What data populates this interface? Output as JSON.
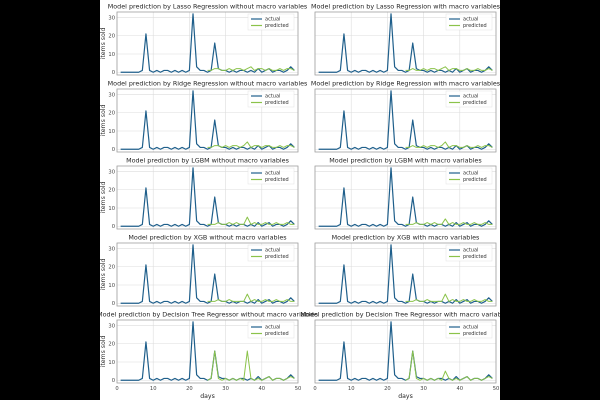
{
  "chart_data": {
    "type": "line",
    "layout": {
      "rows": 5,
      "cols": 2
    },
    "xlabel": "days",
    "ylabel": "items sold",
    "xlim": [
      0,
      50
    ],
    "ylim": [
      -1.5,
      33
    ],
    "xticks": [
      0,
      10,
      20,
      30,
      40,
      50
    ],
    "yticks": [
      0,
      10,
      20,
      30
    ],
    "grid": true,
    "legend_position": "top-right",
    "legend": [
      "actual",
      "predicted"
    ],
    "colors": {
      "actual": "#1f5f8b",
      "predicted": "#8bc34a"
    },
    "x": [
      1,
      2,
      3,
      4,
      5,
      6,
      7,
      8,
      9,
      10,
      11,
      12,
      13,
      14,
      15,
      16,
      17,
      18,
      19,
      20,
      21,
      22,
      23,
      24,
      25,
      26,
      27,
      28,
      29,
      30,
      31,
      32,
      33,
      34,
      35,
      36,
      37,
      38,
      39,
      40,
      41,
      42,
      43,
      44,
      45,
      46,
      47,
      48,
      49
    ],
    "actual": [
      0,
      0,
      0,
      0,
      0,
      0,
      1,
      21,
      1,
      0,
      1,
      0,
      1,
      1,
      0,
      1,
      0,
      1,
      0,
      1,
      32,
      3,
      1,
      1,
      0,
      1,
      16,
      2,
      1,
      1,
      0,
      1,
      0,
      1,
      1,
      0,
      1,
      0,
      2,
      0,
      1,
      2,
      0,
      1,
      1,
      0,
      1,
      3,
      1
    ],
    "charts": [
      {
        "title": "Model prediction by Lasso Regression without macro variables",
        "predicted": {
          "start": 25,
          "values": [
            1,
            1,
            2,
            2,
            1,
            1,
            2,
            1,
            2,
            2,
            1,
            2,
            3,
            1,
            2,
            2,
            1,
            2,
            1,
            1,
            2,
            1,
            2,
            2,
            1
          ]
        }
      },
      {
        "title": "Model prediction by Lasso Regression with macro variables",
        "predicted": {
          "start": 25,
          "values": [
            1,
            1,
            2,
            1,
            1,
            2,
            1,
            2,
            2,
            1,
            2,
            3,
            1,
            2,
            2,
            1,
            1,
            2,
            1,
            1,
            2,
            1,
            1,
            2,
            1
          ]
        }
      },
      {
        "title": "Model prediction by Ridge Regression without macro variables",
        "predicted": {
          "start": 25,
          "values": [
            1,
            1,
            2,
            2,
            1,
            2,
            1,
            2,
            2,
            1,
            2,
            4,
            1,
            2,
            2,
            1,
            2,
            2,
            1,
            1,
            2,
            1,
            2,
            2,
            1
          ]
        }
      },
      {
        "title": "Model prediction by Ridge Regression with macro variables",
        "predicted": {
          "start": 25,
          "values": [
            1,
            1,
            2,
            1,
            1,
            2,
            1,
            2,
            2,
            1,
            2,
            4,
            1,
            2,
            2,
            1,
            1,
            2,
            1,
            1,
            2,
            1,
            2,
            2,
            1
          ]
        }
      },
      {
        "title": "Model prediction by LGBM without macro variables",
        "predicted": {
          "start": 25,
          "values": [
            1,
            1,
            1,
            2,
            1,
            1,
            2,
            1,
            2,
            1,
            1,
            5,
            1,
            2,
            1,
            1,
            2,
            1,
            1,
            2,
            1,
            1,
            2,
            1,
            1
          ]
        }
      },
      {
        "title": "Model prediction by LGBM with macro variables",
        "predicted": {
          "start": 25,
          "values": [
            1,
            1,
            1,
            2,
            1,
            1,
            2,
            1,
            2,
            1,
            1,
            4,
            1,
            2,
            1,
            1,
            2,
            1,
            1,
            2,
            1,
            1,
            2,
            1,
            1
          ]
        }
      },
      {
        "title": "Model prediction by XGB without macro variables",
        "predicted": {
          "start": 25,
          "values": [
            1,
            1,
            1,
            2,
            1,
            1,
            2,
            1,
            1,
            1,
            1,
            5,
            1,
            2,
            1,
            1,
            2,
            1,
            1,
            2,
            1,
            1,
            2,
            1,
            1
          ]
        }
      },
      {
        "title": "Model prediction by XGB with macro variables",
        "predicted": {
          "start": 25,
          "values": [
            1,
            1,
            1,
            2,
            1,
            1,
            2,
            1,
            1,
            1,
            1,
            5,
            1,
            2,
            1,
            1,
            2,
            1,
            1,
            2,
            1,
            1,
            2,
            1,
            1
          ]
        }
      },
      {
        "title": "Model prediction by Decision Tree Regressor without macro variables",
        "predicted": {
          "start": 25,
          "values": [
            0,
            1,
            16,
            1,
            0,
            1,
            0,
            1,
            0,
            1,
            0,
            16,
            1,
            0,
            1,
            0,
            1,
            2,
            0,
            1,
            1,
            0,
            1,
            2,
            1
          ]
        }
      },
      {
        "title": "Model prediction by Decision Tree Regressor with macro variables",
        "predicted": {
          "start": 25,
          "values": [
            0,
            1,
            16,
            1,
            0,
            1,
            0,
            1,
            0,
            1,
            0,
            5,
            1,
            0,
            1,
            0,
            1,
            2,
            0,
            1,
            1,
            0,
            1,
            2,
            1
          ]
        }
      }
    ]
  }
}
